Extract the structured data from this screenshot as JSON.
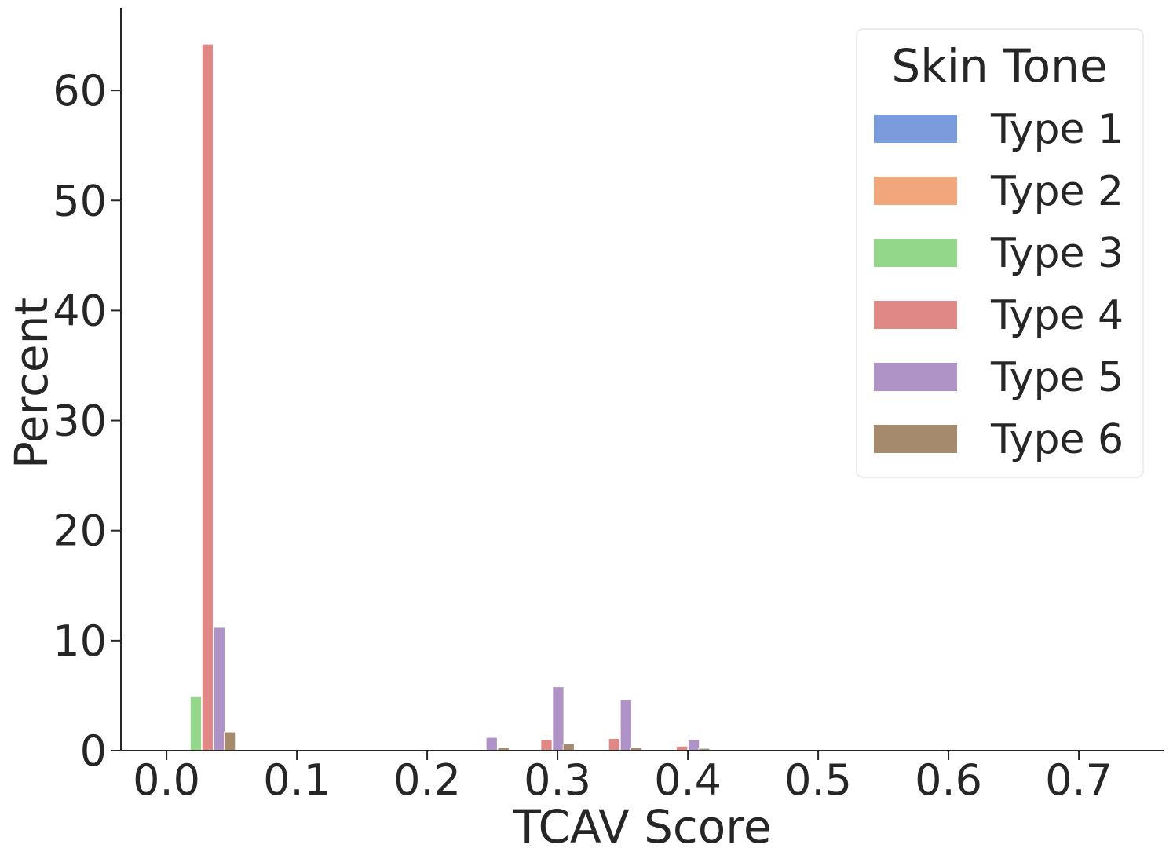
{
  "chart_data": {
    "type": "bar",
    "title": "",
    "xlabel": "TCAV Score",
    "ylabel": "Percent",
    "xlim": [
      -0.035,
      0.765
    ],
    "ylim": [
      0,
      67.5
    ],
    "xticks": [
      "0.0",
      "0.1",
      "0.2",
      "0.3",
      "0.4",
      "0.5",
      "0.6",
      "0.7"
    ],
    "xtick_values": [
      0.0,
      0.1,
      0.2,
      0.3,
      0.4,
      0.5,
      0.6,
      0.7
    ],
    "yticks": [
      "0",
      "10",
      "20",
      "30",
      "40",
      "50",
      "60"
    ],
    "ytick_values": [
      0,
      10,
      20,
      30,
      40,
      50,
      60
    ],
    "grid": false,
    "bar_width": 0.0085,
    "legend": {
      "title": "Skin Tone",
      "placement": "top-right"
    },
    "series": [
      {
        "name": "Type 1",
        "color": "#7a9cdd",
        "points": []
      },
      {
        "name": "Type 2",
        "color": "#f2a67b",
        "points": []
      },
      {
        "name": "Type 3",
        "color": "#93d78b",
        "points": [
          {
            "x": 0.0225,
            "y": 4.9
          }
        ]
      },
      {
        "name": "Type 4",
        "color": "#e08886",
        "points": [
          {
            "x": 0.0315,
            "y": 64.2
          },
          {
            "x": 0.2915,
            "y": 1.0
          },
          {
            "x": 0.3435,
            "y": 1.1
          },
          {
            "x": 0.3955,
            "y": 0.4
          }
        ]
      },
      {
        "name": "Type 5",
        "color": "#b093c6",
        "points": [
          {
            "x": 0.0405,
            "y": 11.2
          },
          {
            "x": 0.2495,
            "y": 1.2
          },
          {
            "x": 0.3005,
            "y": 5.8
          },
          {
            "x": 0.3525,
            "y": 4.6
          },
          {
            "x": 0.4045,
            "y": 1.0
          }
        ]
      },
      {
        "name": "Type 6",
        "color": "#a58a6d",
        "points": [
          {
            "x": 0.0485,
            "y": 1.7
          },
          {
            "x": 0.2585,
            "y": 0.3
          },
          {
            "x": 0.3085,
            "y": 0.6
          },
          {
            "x": 0.3605,
            "y": 0.3
          },
          {
            "x": 0.4125,
            "y": 0.2
          }
        ]
      }
    ]
  }
}
